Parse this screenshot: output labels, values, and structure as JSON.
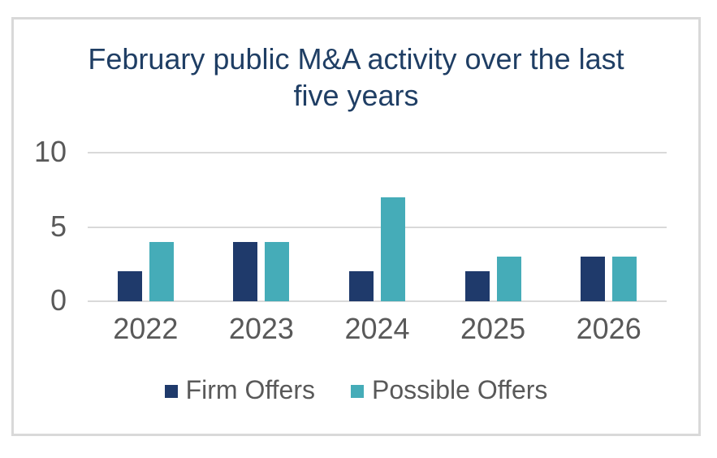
{
  "chart_data": {
    "type": "bar",
    "title": "February public M&A activity over the last five years",
    "categories": [
      "2022",
      "2023",
      "2024",
      "2025",
      "2026"
    ],
    "series": [
      {
        "name": "Firm Offers",
        "color": "#1F3A6B",
        "values": [
          2,
          4,
          2,
          2,
          3
        ]
      },
      {
        "name": "Possible Offers",
        "color": "#45ACB8",
        "values": [
          4,
          4,
          7,
          3,
          3
        ]
      }
    ],
    "ylim": [
      0,
      10
    ],
    "yticks": [
      0,
      5,
      10
    ],
    "grid": true,
    "legend_position": "bottom",
    "xlabel": "",
    "ylabel": ""
  },
  "style": {
    "title_color": "#1F3E64",
    "axis_text_color": "#595959",
    "gridline_color": "#D9D9D9",
    "frame_border_color": "#D9D9D9",
    "background": "#FFFFFF"
  }
}
